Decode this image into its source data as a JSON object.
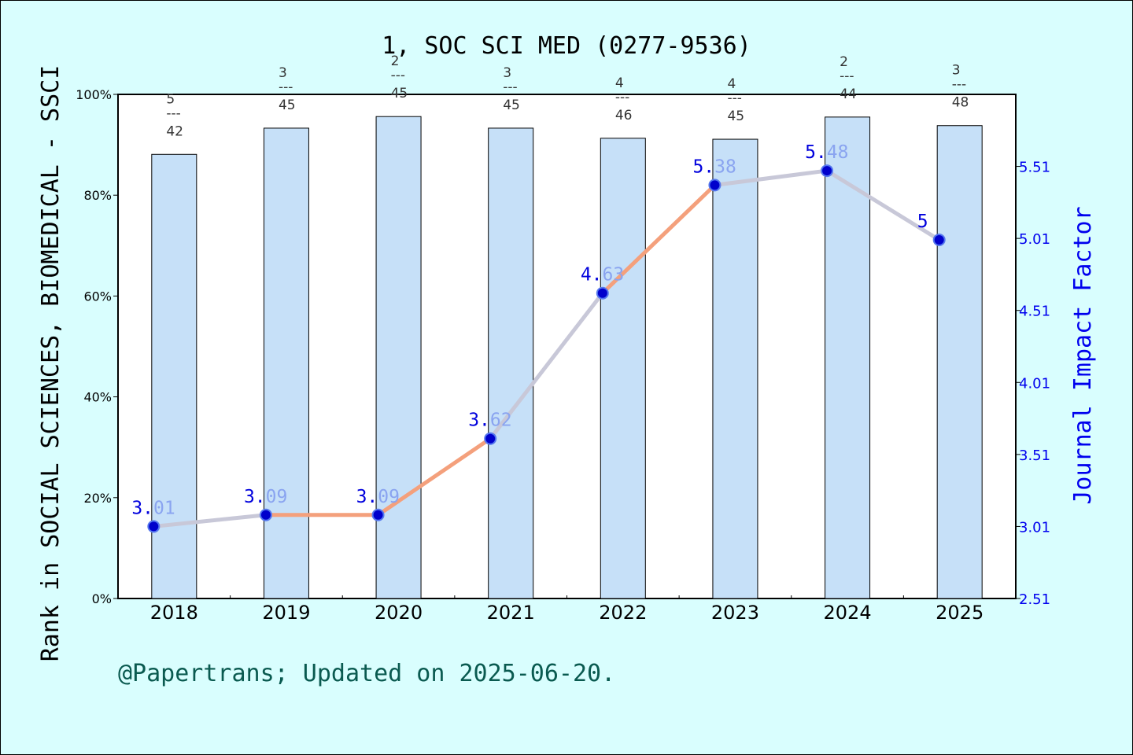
{
  "colors": {
    "background": "#d9fefe",
    "bar_fill": "#c6e0f8",
    "line_colors": [
      "#f4a07c",
      "#c8c8d8"
    ],
    "marker": "#0000cc",
    "right_axis": "#0000ee",
    "footer_text": "#0a5a50"
  },
  "footer": "@Papertrans; Updated on 2025-06-20.",
  "chart_data": {
    "type": "bar",
    "title": "1, SOC SCI MED (0277-9536)",
    "ylabel": "Rank in SOCIAL SCIENCES, BIOMEDICAL - SSCI",
    "ylabel_right": "Journal Impact Factor",
    "categories": [
      "2018",
      "2019",
      "2020",
      "2021",
      "2022",
      "2023",
      "2024",
      "2025"
    ],
    "ylim": [
      0,
      100
    ],
    "y_ticks": [
      "0%",
      "20%",
      "40%",
      "60%",
      "80%",
      "100%"
    ],
    "y_tick_values": [
      0,
      20,
      40,
      60,
      80,
      100
    ],
    "ylim_right": [
      2.51,
      6.01
    ],
    "right_ticks": [
      "2.51",
      "3.01",
      "3.51",
      "4.01",
      "4.51",
      "5.01",
      "5.51"
    ],
    "right_tick_values": [
      2.51,
      3.01,
      3.51,
      4.01,
      4.51,
      5.01,
      5.51
    ],
    "series": [
      {
        "name": "",
        "type": "bar",
        "axis": "left",
        "values": [
          88.1,
          93.3,
          95.6,
          93.3,
          91.3,
          91.1,
          95.5,
          93.8
        ],
        "rank_numerators": [
          "5",
          "3",
          "2",
          "3",
          "4",
          "4",
          "2",
          "3"
        ],
        "rank_separator": "---",
        "rank_denominators": [
          "42",
          "45",
          "45",
          "45",
          "46",
          "45",
          "44",
          "48"
        ]
      },
      {
        "name": "",
        "type": "line",
        "axis": "right",
        "values": [
          3.01,
          3.09,
          3.09,
          3.62,
          4.63,
          5.38,
          5.48,
          5.0
        ],
        "labels_part1": [
          "3.",
          "3.",
          "3.",
          "3.",
          "4.",
          "5.",
          "5.",
          "5"
        ],
        "labels_part2": [
          "01",
          "09",
          "09",
          "62",
          "63",
          "38",
          "48",
          ""
        ]
      }
    ]
  }
}
